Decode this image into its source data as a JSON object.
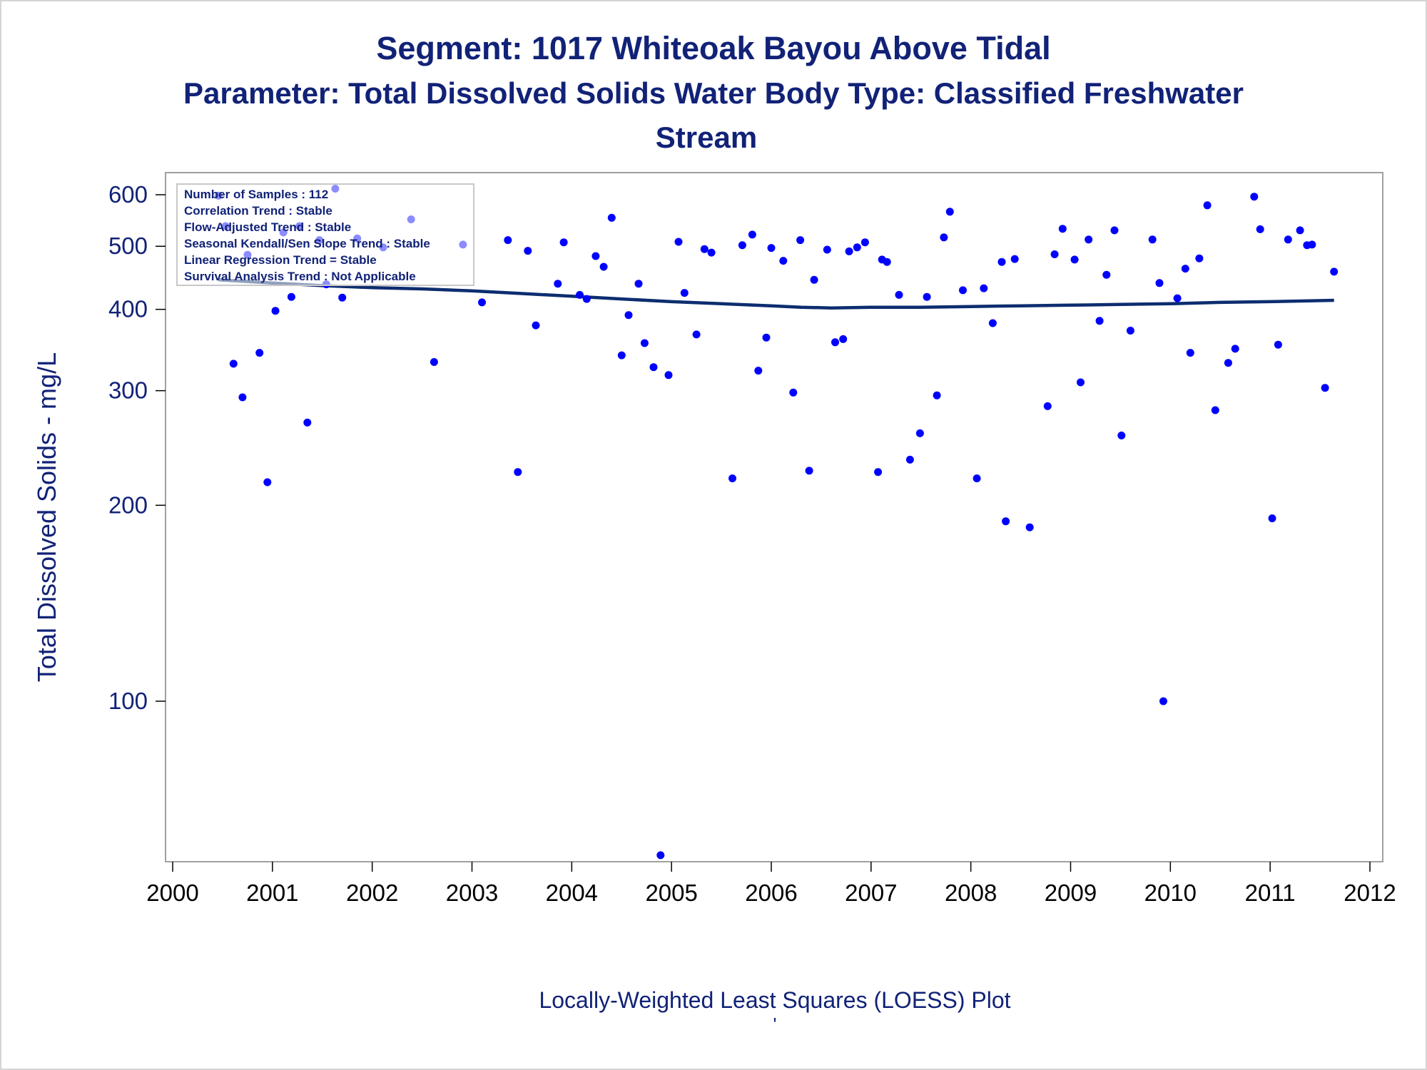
{
  "header": {
    "title_line1": "Segment: 1017  Whiteoak Bayou Above Tidal",
    "title_line2": "Parameter: Total Dissolved Solids   Water Body Type: Classified Freshwater",
    "title_line3": "Stream"
  },
  "footer": {
    "caption": "Locally-Weighted Least Squares (LOESS) Plot",
    "tick_mark": "'"
  },
  "stats_box": {
    "lines": [
      "Number of Samples : 112",
      "Correlation Trend : Stable",
      "Flow-Adjusted Trend : Stable",
      "Seasonal Kendall/Sen Slope Trend : Stable",
      "Linear Regression Trend = Stable",
      "Survival Analysis Trend : Not Applicable"
    ]
  },
  "colors": {
    "title": "#112277",
    "points": "#0000ff",
    "loess_line": "#0d2d6f",
    "axis": "#a0a0a0"
  },
  "chart_data": {
    "type": "scatter",
    "ylabel": "Total Dissolved Solids - mg/L",
    "xlabel": "",
    "y_scale": "log",
    "ylim": [
      55,
      640
    ],
    "xlim": [
      2000,
      2012
    ],
    "x_ticks": [
      2000,
      2001,
      2002,
      2003,
      2004,
      2005,
      2006,
      2007,
      2008,
      2009,
      2010,
      2011,
      2012
    ],
    "x_tick_labels": [
      "2000",
      "2001",
      "2002",
      "2003",
      "2004",
      "2005",
      "2006",
      "2007",
      "2008",
      "2009",
      "2010",
      "2011",
      "2012"
    ],
    "y_ticks": [
      100,
      200,
      300,
      400,
      500,
      600
    ],
    "y_tick_labels": [
      "100",
      "200",
      "300",
      "400",
      "500",
      "600"
    ],
    "grid": false,
    "points": [
      {
        "x": 2000.46,
        "y": 598
      },
      {
        "x": 2000.53,
        "y": 537
      },
      {
        "x": 2000.61,
        "y": 330
      },
      {
        "x": 2000.7,
        "y": 293
      },
      {
        "x": 2000.75,
        "y": 485
      },
      {
        "x": 2000.87,
        "y": 343
      },
      {
        "x": 2000.95,
        "y": 217
      },
      {
        "x": 2001.03,
        "y": 398
      },
      {
        "x": 2001.11,
        "y": 525
      },
      {
        "x": 2001.19,
        "y": 418
      },
      {
        "x": 2001.27,
        "y": 537
      },
      {
        "x": 2001.35,
        "y": 268
      },
      {
        "x": 2001.47,
        "y": 511
      },
      {
        "x": 2001.54,
        "y": 437
      },
      {
        "x": 2001.63,
        "y": 613
      },
      {
        "x": 2001.7,
        "y": 417
      },
      {
        "x": 2001.85,
        "y": 514
      },
      {
        "x": 2002.11,
        "y": 498
      },
      {
        "x": 2002.39,
        "y": 550
      },
      {
        "x": 2002.62,
        "y": 332
      },
      {
        "x": 2002.91,
        "y": 503
      },
      {
        "x": 2003.1,
        "y": 410
      },
      {
        "x": 2003.36,
        "y": 511
      },
      {
        "x": 2003.46,
        "y": 225
      },
      {
        "x": 2003.56,
        "y": 492
      },
      {
        "x": 2003.64,
        "y": 378
      },
      {
        "x": 2003.86,
        "y": 438
      },
      {
        "x": 2003.92,
        "y": 507
      },
      {
        "x": 2004.08,
        "y": 421
      },
      {
        "x": 2004.15,
        "y": 415
      },
      {
        "x": 2004.24,
        "y": 483
      },
      {
        "x": 2004.32,
        "y": 465
      },
      {
        "x": 2004.4,
        "y": 553
      },
      {
        "x": 2004.5,
        "y": 340
      },
      {
        "x": 2004.57,
        "y": 392
      },
      {
        "x": 2004.67,
        "y": 438
      },
      {
        "x": 2004.73,
        "y": 355
      },
      {
        "x": 2004.82,
        "y": 326
      },
      {
        "x": 2004.89,
        "y": 58
      },
      {
        "x": 2004.97,
        "y": 317
      },
      {
        "x": 2005.07,
        "y": 508
      },
      {
        "x": 2005.13,
        "y": 424
      },
      {
        "x": 2005.25,
        "y": 366
      },
      {
        "x": 2005.33,
        "y": 495
      },
      {
        "x": 2005.4,
        "y": 489
      },
      {
        "x": 2005.61,
        "y": 220
      },
      {
        "x": 2005.71,
        "y": 502
      },
      {
        "x": 2005.81,
        "y": 521
      },
      {
        "x": 2005.87,
        "y": 322
      },
      {
        "x": 2005.95,
        "y": 362
      },
      {
        "x": 2006.0,
        "y": 497
      },
      {
        "x": 2006.12,
        "y": 475
      },
      {
        "x": 2006.22,
        "y": 298
      },
      {
        "x": 2006.29,
        "y": 511
      },
      {
        "x": 2006.38,
        "y": 226
      },
      {
        "x": 2006.43,
        "y": 444
      },
      {
        "x": 2006.56,
        "y": 494
      },
      {
        "x": 2006.64,
        "y": 356
      },
      {
        "x": 2006.72,
        "y": 360
      },
      {
        "x": 2006.78,
        "y": 491
      },
      {
        "x": 2006.86,
        "y": 498
      },
      {
        "x": 2006.94,
        "y": 507
      },
      {
        "x": 2007.07,
        "y": 225
      },
      {
        "x": 2007.11,
        "y": 477
      },
      {
        "x": 2007.16,
        "y": 473
      },
      {
        "x": 2007.28,
        "y": 421
      },
      {
        "x": 2007.39,
        "y": 235
      },
      {
        "x": 2007.49,
        "y": 258
      },
      {
        "x": 2007.56,
        "y": 418
      },
      {
        "x": 2007.66,
        "y": 295
      },
      {
        "x": 2007.73,
        "y": 516
      },
      {
        "x": 2007.79,
        "y": 565
      },
      {
        "x": 2007.92,
        "y": 428
      },
      {
        "x": 2008.06,
        "y": 220
      },
      {
        "x": 2008.13,
        "y": 431
      },
      {
        "x": 2008.22,
        "y": 381
      },
      {
        "x": 2008.31,
        "y": 473
      },
      {
        "x": 2008.35,
        "y": 189
      },
      {
        "x": 2008.44,
        "y": 478
      },
      {
        "x": 2008.59,
        "y": 185
      },
      {
        "x": 2008.77,
        "y": 284
      },
      {
        "x": 2008.84,
        "y": 486
      },
      {
        "x": 2008.92,
        "y": 532
      },
      {
        "x": 2009.04,
        "y": 477
      },
      {
        "x": 2009.1,
        "y": 309
      },
      {
        "x": 2009.18,
        "y": 512
      },
      {
        "x": 2009.29,
        "y": 384
      },
      {
        "x": 2009.36,
        "y": 452
      },
      {
        "x": 2009.44,
        "y": 529
      },
      {
        "x": 2009.51,
        "y": 256
      },
      {
        "x": 2009.6,
        "y": 371
      },
      {
        "x": 2009.82,
        "y": 512
      },
      {
        "x": 2009.89,
        "y": 439
      },
      {
        "x": 2009.93,
        "y": 100
      },
      {
        "x": 2010.07,
        "y": 416
      },
      {
        "x": 2010.15,
        "y": 462
      },
      {
        "x": 2010.2,
        "y": 343
      },
      {
        "x": 2010.29,
        "y": 479
      },
      {
        "x": 2010.37,
        "y": 578
      },
      {
        "x": 2010.45,
        "y": 280
      },
      {
        "x": 2010.58,
        "y": 331
      },
      {
        "x": 2010.65,
        "y": 348
      },
      {
        "x": 2010.84,
        "y": 596
      },
      {
        "x": 2010.9,
        "y": 531
      },
      {
        "x": 2011.02,
        "y": 191
      },
      {
        "x": 2011.08,
        "y": 353
      },
      {
        "x": 2011.18,
        "y": 512
      },
      {
        "x": 2011.3,
        "y": 529
      },
      {
        "x": 2011.37,
        "y": 502
      },
      {
        "x": 2011.42,
        "y": 503
      },
      {
        "x": 2011.55,
        "y": 303
      },
      {
        "x": 2011.64,
        "y": 457
      }
    ],
    "loess_line": {
      "x": [
        2000.46,
        2001.0,
        2001.5,
        2002.0,
        2002.5,
        2003.0,
        2003.5,
        2004.0,
        2004.5,
        2005.0,
        2005.5,
        2006.0,
        2006.3,
        2006.6,
        2007.0,
        2007.5,
        2008.0,
        2008.5,
        2009.0,
        2009.5,
        2010.0,
        2010.5,
        2011.0,
        2011.64
      ],
      "y": [
        444,
        439,
        435,
        432,
        430,
        427,
        423,
        419,
        415,
        411,
        408,
        405,
        403,
        402,
        403,
        403,
        404,
        405,
        406,
        407,
        408,
        410,
        411,
        413
      ]
    }
  }
}
